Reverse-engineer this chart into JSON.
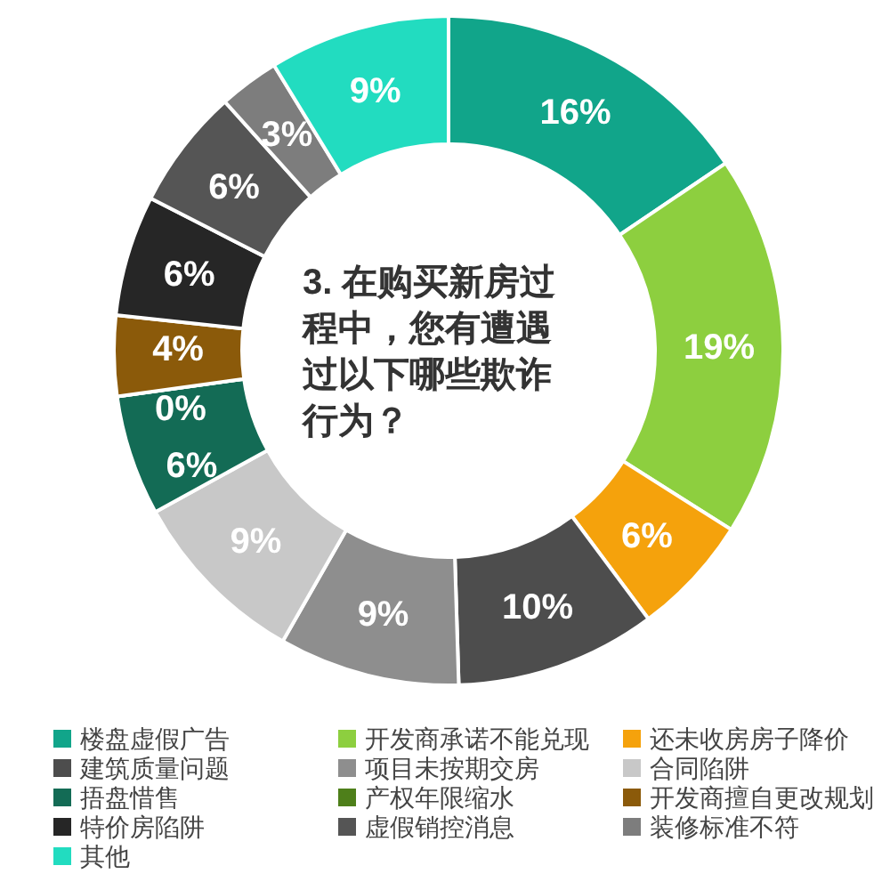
{
  "chart_data": {
    "type": "donut",
    "title": "3. 在购买新房过程中，您有遭遇过以下哪些欺诈行为？",
    "categories": [
      "楼盘虚假广告",
      "开发商承诺不能兑现",
      "还未收房房子降价",
      "建筑质量问题",
      "项目未按期交房",
      "合同陷阱",
      "捂盘惜售",
      "产权年限缩水",
      "开发商擅自更改规划",
      "特价房陷阱",
      "虚假销控消息",
      "装修标准不符",
      "其他"
    ],
    "values": [
      16,
      19,
      6,
      10,
      9,
      9,
      6,
      0,
      4,
      6,
      6,
      3,
      9
    ],
    "value_labels": [
      "16%",
      "19%",
      "6%",
      "10%",
      "9%",
      "9%",
      "6%",
      "0%",
      "4%",
      "6%",
      "6%",
      "3%",
      "9%"
    ],
    "colors": [
      "#11a58a",
      "#8dcf3f",
      "#f5a20c",
      "#4d4d4d",
      "#8e8e8e",
      "#c8c8c8",
      "#136b55",
      "#4e7f1a",
      "#8b5a0a",
      "#262626",
      "#555555",
      "#7d7d7d",
      "#22dcc0"
    ],
    "legend": "bottom"
  }
}
